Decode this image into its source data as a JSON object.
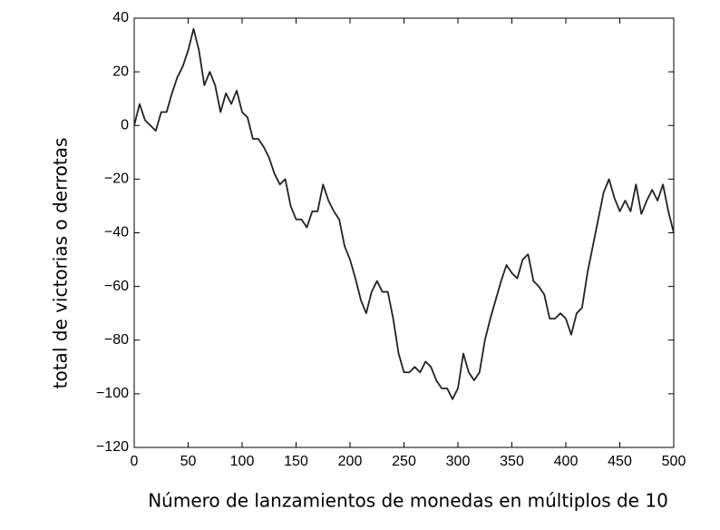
{
  "chart_data": {
    "type": "line",
    "x_label": "Número de lanzamientos de monedas en múltiplos de 10",
    "y_label": "total de victorias o derrotas",
    "x": [
      0,
      5,
      10,
      15,
      20,
      25,
      30,
      35,
      40,
      45,
      50,
      55,
      60,
      65,
      70,
      75,
      80,
      85,
      90,
      95,
      100,
      105,
      110,
      115,
      120,
      125,
      130,
      135,
      140,
      145,
      150,
      155,
      160,
      165,
      170,
      175,
      180,
      185,
      190,
      195,
      200,
      205,
      210,
      215,
      220,
      225,
      230,
      235,
      240,
      245,
      250,
      255,
      260,
      265,
      270,
      275,
      280,
      285,
      290,
      295,
      300,
      305,
      310,
      315,
      320,
      325,
      330,
      335,
      340,
      345,
      350,
      355,
      360,
      365,
      370,
      375,
      380,
      385,
      390,
      395,
      400,
      405,
      410,
      415,
      420,
      425,
      430,
      435,
      440,
      445,
      450,
      455,
      460,
      465,
      470,
      475,
      480,
      485,
      490,
      495,
      500
    ],
    "series": [
      {
        "name": "total",
        "color": "#222222",
        "values": [
          0,
          8,
          2,
          0,
          -2,
          5,
          5,
          12,
          18,
          22,
          28,
          36,
          28,
          15,
          20,
          15,
          5,
          12,
          8,
          13,
          5,
          3,
          -5,
          -5,
          -8,
          -12,
          -18,
          -22,
          -20,
          -30,
          -35,
          -35,
          -38,
          -32,
          -32,
          -22,
          -28,
          -32,
          -35,
          -45,
          -50,
          -57,
          -65,
          -70,
          -62,
          -58,
          -62,
          -62,
          -72,
          -85,
          -92,
          -92,
          -90,
          -92,
          -88,
          -90,
          -95,
          -98,
          -98,
          -102,
          -98,
          -85,
          -92,
          -95,
          -92,
          -80,
          -72,
          -65,
          -58,
          -52,
          -55,
          -57,
          -50,
          -48,
          -58,
          -60,
          -63,
          -72,
          -72,
          -70,
          -72,
          -78,
          -70,
          -68,
          -55,
          -45,
          -35,
          -25,
          -20,
          -27,
          -32,
          -28,
          -32,
          -22,
          -33,
          -28,
          -24,
          -28,
          -22,
          -32,
          -40
        ]
      }
    ],
    "xlim": [
      0,
      500
    ],
    "xticks": [
      0,
      50,
      100,
      150,
      200,
      250,
      300,
      350,
      400,
      450,
      500
    ],
    "ylim": [
      -120,
      40
    ],
    "yticks": [
      {
        "value": -120,
        "label": "−120"
      },
      {
        "value": -100,
        "label": "−100"
      },
      {
        "value": -80,
        "label": "−80"
      },
      {
        "value": -60,
        "label": "−60"
      },
      {
        "value": -40,
        "label": "−40"
      },
      {
        "value": -20,
        "label": "−20"
      },
      0,
      20,
      40
    ],
    "grid": false
  }
}
